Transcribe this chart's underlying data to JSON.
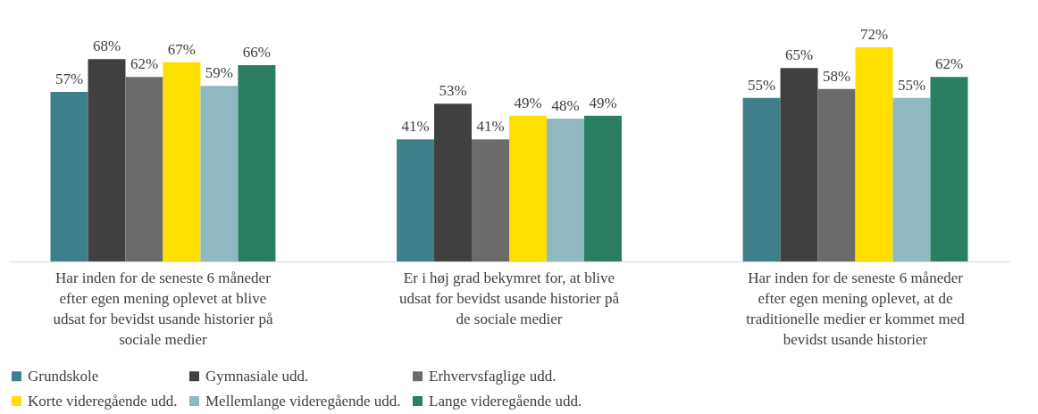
{
  "chart_data": {
    "type": "bar",
    "categories": [
      "Har inden for de seneste 6 måneder efter egen mening oplevet at blive udsat for bevidst usande historier på sociale medier",
      "Er i høj grad bekymret for, at blive udsat for bevidst usande historier på de sociale medier",
      "Har inden for de seneste 6 måneder efter egen mening oplevet, at de traditionelle medier er kommet med bevidst usande historier"
    ],
    "series": [
      {
        "name": "Grundskole",
        "color": "#3e7f8b",
        "values": [
          57,
          41,
          55
        ],
        "value_labels": [
          "57%",
          "41%",
          "55%"
        ]
      },
      {
        "name": "Gymnasiale udd.",
        "color": "#404040",
        "values": [
          68,
          53,
          65
        ],
        "value_labels": [
          "68%",
          "53%",
          "65%"
        ]
      },
      {
        "name": "Erhvervsfaglige udd.",
        "color": "#6b6b6b",
        "values": [
          62,
          41,
          58
        ],
        "value_labels": [
          "62%",
          "41%",
          "58%"
        ]
      },
      {
        "name": "Korte videregående udd.",
        "color": "#ffdf00",
        "values": [
          67,
          49,
          72
        ],
        "value_labels": [
          "67%",
          "49%",
          "72%"
        ]
      },
      {
        "name": "Mellemlange videregående udd.",
        "color": "#8fb8c0",
        "values": [
          59,
          48,
          55
        ],
        "value_labels": [
          "59%",
          "48%",
          "55%"
        ]
      },
      {
        "name": "Lange videregående udd.",
        "color": "#2a7f62",
        "values": [
          66,
          49,
          62
        ],
        "value_labels": [
          "66%",
          "49%",
          "62%"
        ]
      }
    ],
    "legend": "bottom",
    "grid": false
  }
}
